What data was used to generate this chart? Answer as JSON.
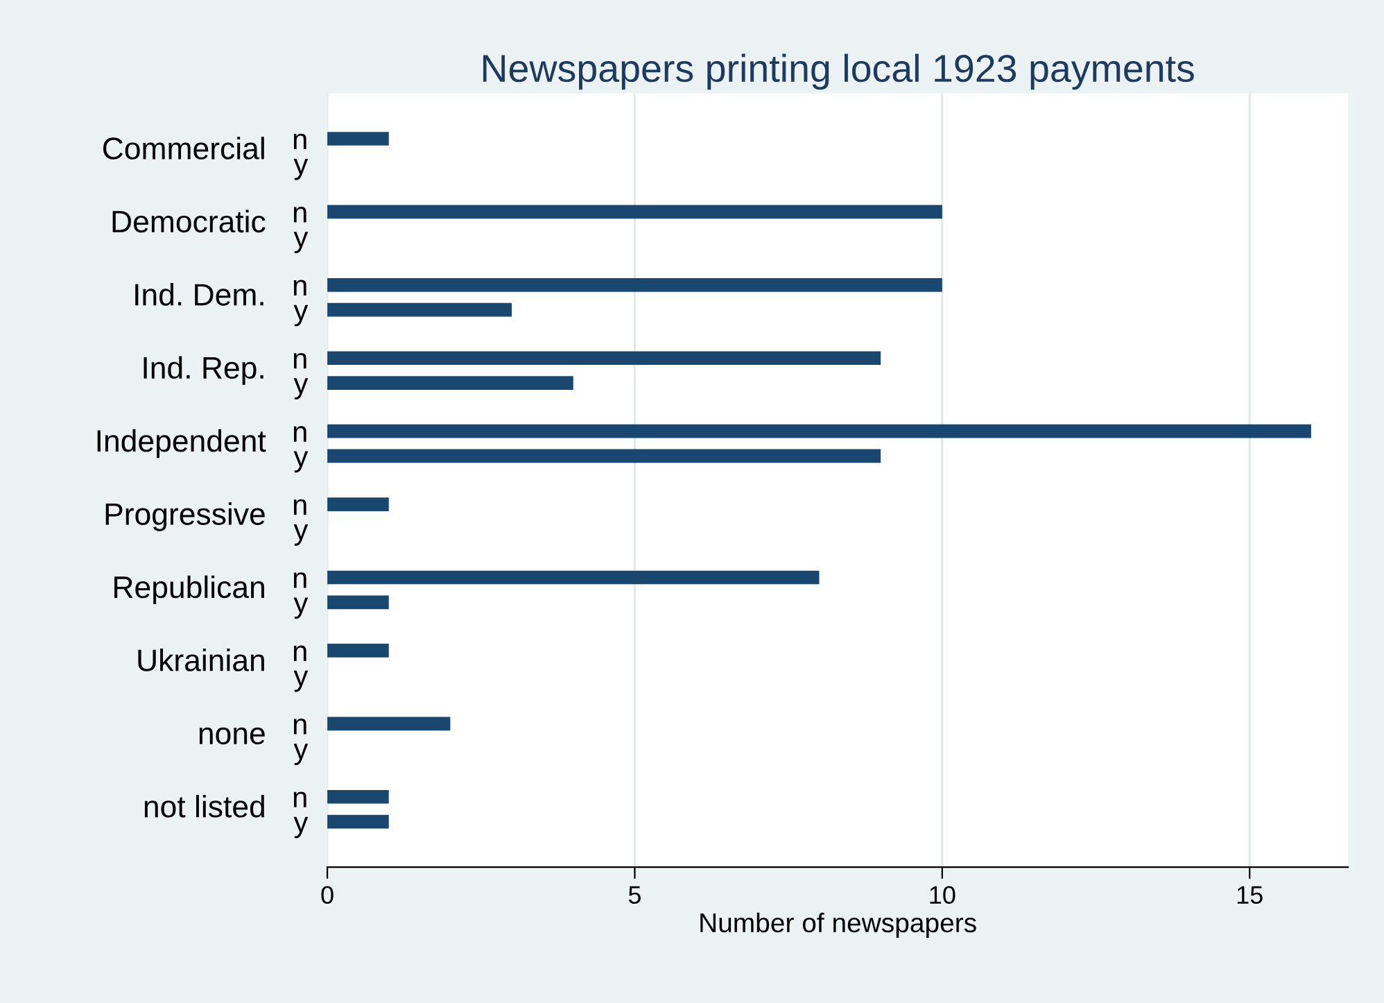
{
  "chart_data": {
    "type": "bar",
    "orientation": "horizontal",
    "title": "Newspapers printing local 1923 payments",
    "xlabel": "Number of newspapers",
    "categories": [
      "n",
      "y",
      "n",
      "y",
      "n",
      "y",
      "n",
      "y",
      "n",
      "y",
      "n",
      "y",
      "n",
      "y",
      "n",
      "y",
      "n",
      "y",
      "n",
      "y"
    ],
    "values": [
      1,
      0,
      10,
      0,
      10,
      3,
      9,
      4,
      16,
      9,
      1,
      0,
      8,
      1,
      1,
      0,
      2,
      0,
      1,
      1
    ],
    "color": "#1a476f",
    "annotations": [
      "Commercial",
      "Democratic",
      "Ind. Dem.",
      "Ind. Rep.",
      "Independent",
      "Progressive",
      "Republican",
      "Ukrainian",
      "none",
      "not listed"
    ],
    "xlim": [
      0,
      16.6
    ],
    "xticks": [
      0,
      5,
      10,
      15
    ],
    "grid": "x",
    "legend": false
  }
}
